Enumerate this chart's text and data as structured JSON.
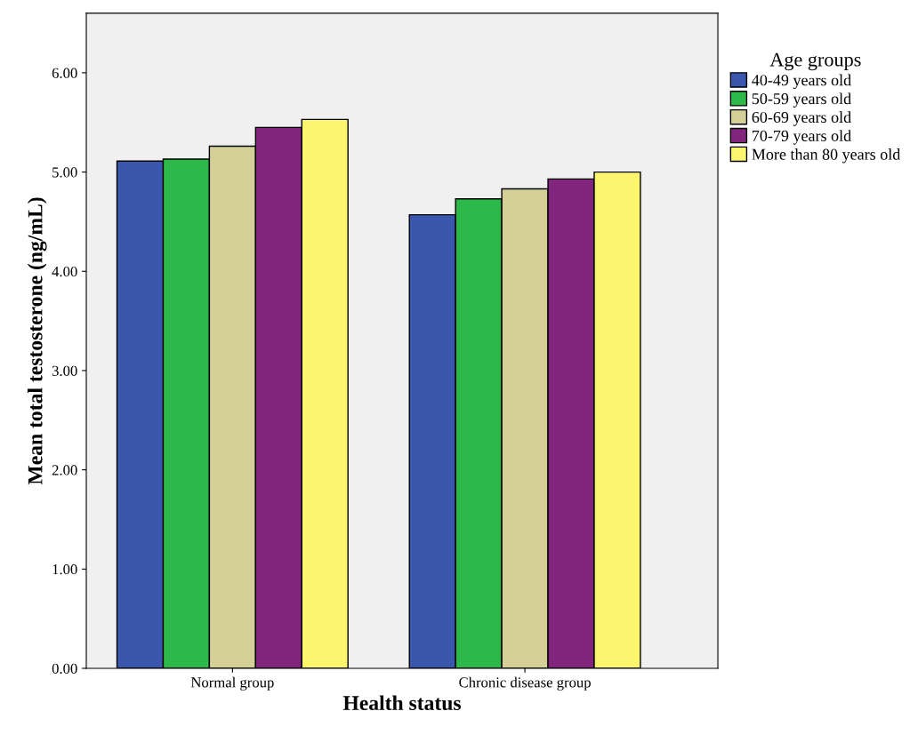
{
  "chart_data": {
    "type": "bar",
    "xlabel": "Health status",
    "ylabel": "Mean total testosterone (ng/mL)",
    "legend_title": "Age groups",
    "categories": [
      "Normal group",
      "Chronic disease group"
    ],
    "series": [
      {
        "name": "40-49 years old",
        "color": "#3b57ad",
        "values": [
          5.11,
          4.57
        ]
      },
      {
        "name": "50-59 years old",
        "color": "#2db84a",
        "values": [
          5.13,
          4.73
        ]
      },
      {
        "name": "60-69 years old",
        "color": "#d5cf98",
        "values": [
          5.26,
          4.83
        ]
      },
      {
        "name": "70-79 years old",
        "color": "#82267d",
        "values": [
          5.45,
          4.93
        ]
      },
      {
        "name": "More than 80 years old",
        "color": "#fbf66e",
        "values": [
          5.53,
          5.0
        ]
      }
    ],
    "ylim": [
      0,
      6.6
    ],
    "yticks": [
      {
        "value": 0,
        "label": "0.00"
      },
      {
        "value": 1,
        "label": "1.00"
      },
      {
        "value": 2,
        "label": "2.00"
      },
      {
        "value": 3,
        "label": "3.00"
      },
      {
        "value": 4,
        "label": "4.00"
      },
      {
        "value": 5,
        "label": "5.00"
      },
      {
        "value": 6,
        "label": "6.00"
      }
    ],
    "legend": "right"
  }
}
